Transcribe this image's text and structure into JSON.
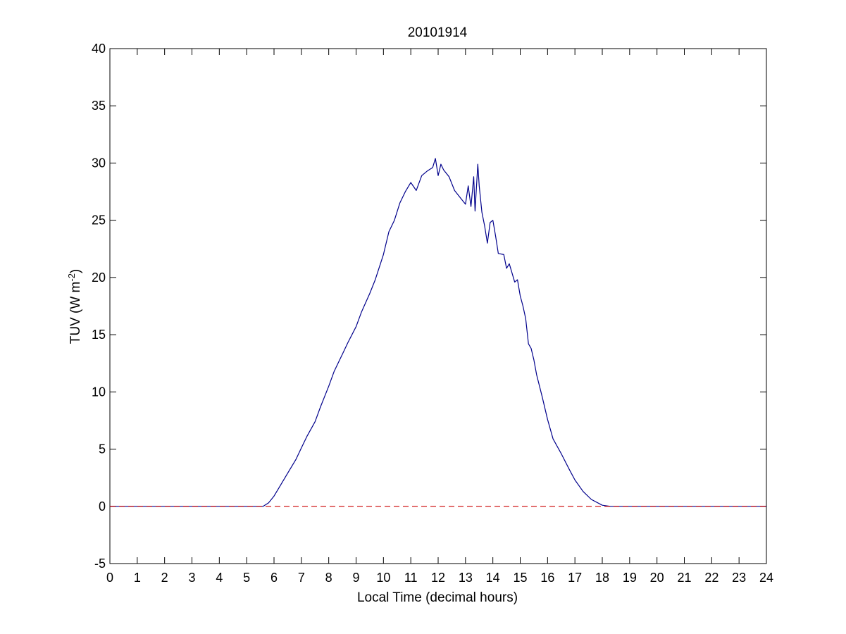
{
  "chart_data": {
    "type": "line",
    "title": "20101914",
    "xlabel": "Local Time (decimal hours)",
    "ylabel_main": "TUV (W m",
    "ylabel_sup": "-2",
    "ylabel_close": ")",
    "xlim": [
      0,
      24
    ],
    "ylim": [
      -5,
      40
    ],
    "x_ticks": [
      0,
      1,
      2,
      3,
      4,
      5,
      6,
      7,
      8,
      9,
      10,
      11,
      12,
      13,
      14,
      15,
      16,
      17,
      18,
      19,
      20,
      21,
      22,
      23,
      24
    ],
    "y_ticks": [
      -5,
      0,
      5,
      10,
      15,
      20,
      25,
      30,
      35,
      40
    ],
    "grid": false,
    "series": [
      {
        "color": "#00008b",
        "style": "solid",
        "x": [
          0,
          5.6,
          5.8,
          6.0,
          6.2,
          6.5,
          6.8,
          7.0,
          7.2,
          7.5,
          7.7,
          8.0,
          8.2,
          8.5,
          8.7,
          9.0,
          9.2,
          9.5,
          9.7,
          10.0,
          10.2,
          10.4,
          10.6,
          10.8,
          11.0,
          11.2,
          11.4,
          11.6,
          11.8,
          11.9,
          12.0,
          12.1,
          12.2,
          12.4,
          12.6,
          12.8,
          13.0,
          13.1,
          13.2,
          13.3,
          13.35,
          13.45,
          13.5,
          13.6,
          13.7,
          13.8,
          13.9,
          14.0,
          14.1,
          14.2,
          14.4,
          14.5,
          14.6,
          14.8,
          14.9,
          15.0,
          15.1,
          15.2,
          15.3,
          15.4,
          15.5,
          15.6,
          15.8,
          16.0,
          16.2,
          16.5,
          16.8,
          17.0,
          17.3,
          17.6,
          18.0,
          18.3,
          18.5,
          18.6,
          18.8,
          24
        ],
        "y": [
          0,
          0,
          0.3,
          0.9,
          1.7,
          2.9,
          4.1,
          5.1,
          6.1,
          7.4,
          8.7,
          10.5,
          11.8,
          13.3,
          14.3,
          15.7,
          17.0,
          18.6,
          19.8,
          22.0,
          24.0,
          25.0,
          26.5,
          27.5,
          28.3,
          27.6,
          28.9,
          29.3,
          29.6,
          30.4,
          28.9,
          29.9,
          29.4,
          28.8,
          27.6,
          27.0,
          26.4,
          28.0,
          26.2,
          28.8,
          25.8,
          29.9,
          28.0,
          25.7,
          24.5,
          23.0,
          24.8,
          25.0,
          23.6,
          22.1,
          22.0,
          20.8,
          21.2,
          19.6,
          19.8,
          18.4,
          17.5,
          16.4,
          14.2,
          13.8,
          12.8,
          11.5,
          9.6,
          7.6,
          5.9,
          4.6,
          3.2,
          2.3,
          1.3,
          0.6,
          0.1,
          0,
          0,
          0,
          0,
          0
        ]
      },
      {
        "color": "#cc0000",
        "style": "dashed",
        "x": [
          0,
          24
        ],
        "y": [
          0,
          0
        ]
      }
    ]
  }
}
